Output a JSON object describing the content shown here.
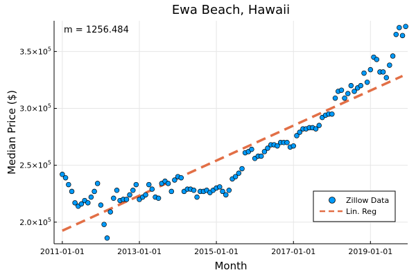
{
  "chart_data": {
    "type": "scatter",
    "title": "Ewa Beach, Hawaii",
    "xlabel": "Month",
    "ylabel": "Median Price ($)",
    "annotation": "m = 1256.484",
    "xlim": [
      "2010-10-15",
      "2019-12-20"
    ],
    "ylim": [
      181000,
      377000
    ],
    "x_ticks": [
      "2011-01-01",
      "2013-01-01",
      "2015-01-01",
      "2017-01-01",
      "2019-01-01"
    ],
    "y_ticks": [
      {
        "value": 200000,
        "mantissa": "2.0",
        "base": "10",
        "exp": "5"
      },
      {
        "value": 250000,
        "mantissa": "2.5",
        "base": "10",
        "exp": "5"
      },
      {
        "value": 300000,
        "mantissa": "3.0",
        "base": "10",
        "exp": "5"
      },
      {
        "value": 350000,
        "mantissa": "3.5",
        "base": "10",
        "exp": "5"
      }
    ],
    "grid": true,
    "legend": {
      "placement": "bottom-right",
      "entries": [
        "Zillow Data",
        "Lin. Reg"
      ]
    },
    "colors": {
      "scatter": "#009af9",
      "line": "#e26f46"
    },
    "series": [
      {
        "name": "Zillow Data",
        "type": "scatter",
        "x": [
          "2011-01-01",
          "2011-02-01",
          "2011-03-01",
          "2011-04-01",
          "2011-05-01",
          "2011-06-01",
          "2011-07-01",
          "2011-08-01",
          "2011-09-01",
          "2011-10-01",
          "2011-11-01",
          "2011-12-01",
          "2012-01-01",
          "2012-02-01",
          "2012-03-01",
          "2012-04-01",
          "2012-05-01",
          "2012-06-01",
          "2012-07-01",
          "2012-08-01",
          "2012-09-01",
          "2012-10-01",
          "2012-11-01",
          "2012-12-01",
          "2013-01-01",
          "2013-02-01",
          "2013-03-01",
          "2013-04-01",
          "2013-05-01",
          "2013-06-01",
          "2013-07-01",
          "2013-08-01",
          "2013-09-01",
          "2013-10-01",
          "2013-11-01",
          "2013-12-01",
          "2014-01-01",
          "2014-02-01",
          "2014-03-01",
          "2014-04-01",
          "2014-05-01",
          "2014-06-01",
          "2014-07-01",
          "2014-08-01",
          "2014-09-01",
          "2014-10-01",
          "2014-11-01",
          "2014-12-01",
          "2015-01-01",
          "2015-02-01",
          "2015-03-01",
          "2015-04-01",
          "2015-05-01",
          "2015-06-01",
          "2015-07-01",
          "2015-08-01",
          "2015-09-01",
          "2015-10-01",
          "2015-11-01",
          "2015-12-01",
          "2016-01-01",
          "2016-02-01",
          "2016-03-01",
          "2016-04-01",
          "2016-05-01",
          "2016-06-01",
          "2016-07-01",
          "2016-08-01",
          "2016-09-01",
          "2016-10-01",
          "2016-11-01",
          "2016-12-01",
          "2017-01-01",
          "2017-02-01",
          "2017-03-01",
          "2017-04-01",
          "2017-05-01",
          "2017-06-01",
          "2017-07-01",
          "2017-08-01",
          "2017-09-01",
          "2017-10-01",
          "2017-11-01",
          "2017-12-01",
          "2018-01-01",
          "2018-02-01",
          "2018-03-01",
          "2018-04-01",
          "2018-05-01",
          "2018-06-01",
          "2018-07-01",
          "2018-08-01",
          "2018-09-01",
          "2018-10-01",
          "2018-11-01",
          "2018-12-01",
          "2019-01-01",
          "2019-02-01",
          "2019-03-01",
          "2019-04-01",
          "2019-05-01",
          "2019-06-01",
          "2019-07-01",
          "2019-08-01",
          "2019-09-01",
          "2019-10-01",
          "2019-11-01",
          "2019-12-01"
        ],
        "y": [
          242000,
          239000,
          233000,
          227000,
          217000,
          214000,
          216000,
          219000,
          217000,
          222000,
          227000,
          234000,
          215000,
          198000,
          186000,
          209000,
          221000,
          228000,
          219000,
          220000,
          220000,
          224000,
          228000,
          233000,
          220000,
          222000,
          224000,
          233000,
          229000,
          222000,
          221000,
          234000,
          236000,
          234000,
          227000,
          237000,
          240000,
          239000,
          227000,
          229000,
          229000,
          228000,
          222000,
          227000,
          227000,
          228000,
          226000,
          228000,
          230000,
          231000,
          227000,
          224000,
          228000,
          238000,
          240000,
          243000,
          247000,
          261000,
          262000,
          264000,
          256000,
          258000,
          258000,
          262000,
          265000,
          268000,
          268000,
          267000,
          270000,
          270000,
          270000,
          266000,
          267000,
          276000,
          279000,
          282000,
          282000,
          283000,
          283000,
          282000,
          285000,
          292000,
          294000,
          295000,
          295000,
          309000,
          315000,
          316000,
          309000,
          313000,
          320000,
          315000,
          318000,
          320000,
          331000,
          323000,
          334000,
          345000,
          343000,
          332000,
          332000,
          327000,
          338000,
          346000,
          365000,
          371000,
          364000,
          372000
        ]
      },
      {
        "name": "Lin. Reg",
        "type": "line",
        "x": [
          "2011-01-01",
          "2019-11-01"
        ],
        "y": [
          192500,
          328500
        ]
      }
    ]
  }
}
